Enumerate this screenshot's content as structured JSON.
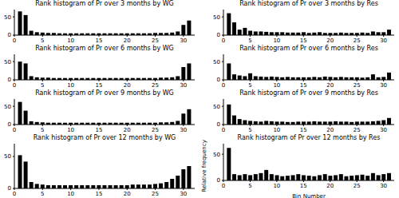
{
  "chart_data": [
    {
      "type": "histogram",
      "title": "Rank histogram of Pr over 3 months by WG",
      "bins": [
        0.5,
        1.5,
        2.5,
        3.5,
        4.5,
        5.5,
        6.5,
        7.5,
        8.5,
        9.5,
        10.5,
        11.5,
        12.5,
        13.5,
        14.5,
        15.5,
        16.5,
        17.5,
        18.5,
        19.5,
        20.5,
        21.5,
        22.5,
        23.5,
        24.5,
        25.5,
        26.5,
        27.5,
        28.5,
        29.5,
        30.5,
        31.5
      ],
      "values": [
        65,
        55,
        12,
        8,
        7,
        6,
        6,
        5,
        5,
        5,
        5,
        5,
        5,
        5,
        5,
        5,
        5,
        5,
        5,
        5,
        5,
        5,
        5,
        5,
        6,
        6,
        6,
        7,
        10,
        28,
        40
      ],
      "xlim": [
        0,
        32
      ],
      "xticks": [
        0,
        5,
        10,
        15,
        20,
        25,
        30
      ],
      "ylim": [
        0,
        70
      ],
      "yticks": [
        0,
        50
      ],
      "color": "#000000",
      "grid": false
    },
    {
      "type": "histogram",
      "title": "Rank histogram of Pr over 3 months by Res",
      "bins": [
        0.5,
        1.5,
        2.5,
        3.5,
        4.5,
        5.5,
        6.5,
        7.5,
        8.5,
        9.5,
        10.5,
        11.5,
        12.5,
        13.5,
        14.5,
        15.5,
        16.5,
        17.5,
        18.5,
        19.5,
        20.5,
        21.5,
        22.5,
        23.5,
        24.5,
        25.5,
        26.5,
        27.5,
        28.5,
        29.5,
        30.5,
        31.5
      ],
      "values": [
        60,
        35,
        15,
        20,
        12,
        10,
        10,
        9,
        8,
        8,
        8,
        7,
        7,
        7,
        8,
        6,
        7,
        8,
        6,
        6,
        6,
        7,
        6,
        6,
        6,
        7,
        6,
        10,
        8,
        8,
        15
      ],
      "xlim": [
        0,
        32
      ],
      "xticks": [
        0,
        5,
        10,
        15,
        20,
        25,
        30
      ],
      "ylim": [
        0,
        70
      ],
      "yticks": [
        0,
        50
      ],
      "color": "#000000",
      "grid": false
    },
    {
      "type": "histogram",
      "title": "Rank histogram of Pr over 6 months by WG",
      "bins": [
        0.5,
        1.5,
        2.5,
        3.5,
        4.5,
        5.5,
        6.5,
        7.5,
        8.5,
        9.5,
        10.5,
        11.5,
        12.5,
        13.5,
        14.5,
        15.5,
        16.5,
        17.5,
        18.5,
        19.5,
        20.5,
        21.5,
        22.5,
        23.5,
        24.5,
        25.5,
        26.5,
        27.5,
        28.5,
        29.5,
        30.5,
        31.5
      ],
      "values": [
        50,
        45,
        10,
        7,
        6,
        6,
        5,
        5,
        5,
        5,
        5,
        5,
        5,
        5,
        5,
        5,
        5,
        5,
        5,
        5,
        5,
        5,
        5,
        5,
        5,
        6,
        6,
        7,
        10,
        35,
        45
      ],
      "xlim": [
        0,
        32
      ],
      "xticks": [
        0,
        5,
        10,
        15,
        20,
        25,
        30
      ],
      "ylim": [
        0,
        70
      ],
      "yticks": [
        0,
        50
      ],
      "color": "#000000",
      "grid": false
    },
    {
      "type": "histogram",
      "title": "Rank histogram of Pr over 6 months by Res",
      "bins": [
        0.5,
        1.5,
        2.5,
        3.5,
        4.5,
        5.5,
        6.5,
        7.5,
        8.5,
        9.5,
        10.5,
        11.5,
        12.5,
        13.5,
        14.5,
        15.5,
        16.5,
        17.5,
        18.5,
        19.5,
        20.5,
        21.5,
        22.5,
        23.5,
        24.5,
        25.5,
        26.5,
        27.5,
        28.5,
        29.5,
        30.5,
        31.5
      ],
      "values": [
        45,
        15,
        12,
        10,
        18,
        10,
        9,
        8,
        9,
        8,
        7,
        8,
        7,
        7,
        7,
        7,
        8,
        7,
        9,
        8,
        7,
        8,
        7,
        7,
        7,
        6,
        7,
        15,
        7,
        8,
        20
      ],
      "xlim": [
        0,
        32
      ],
      "xticks": [
        0,
        5,
        10,
        15,
        20,
        25,
        30
      ],
      "ylim": [
        0,
        70
      ],
      "yticks": [
        0,
        50
      ],
      "color": "#000000",
      "grid": false
    },
    {
      "type": "histogram",
      "title": "Rank histogram of Pr over 9 months by WG",
      "bins": [
        0.5,
        1.5,
        2.5,
        3.5,
        4.5,
        5.5,
        6.5,
        7.5,
        8.5,
        9.5,
        10.5,
        11.5,
        12.5,
        13.5,
        14.5,
        15.5,
        16.5,
        17.5,
        18.5,
        19.5,
        20.5,
        21.5,
        22.5,
        23.5,
        24.5,
        25.5,
        26.5,
        27.5,
        28.5,
        29.5,
        30.5,
        31.5
      ],
      "values": [
        62,
        38,
        9,
        7,
        6,
        5,
        5,
        5,
        5,
        5,
        5,
        5,
        5,
        5,
        5,
        5,
        5,
        5,
        5,
        5,
        5,
        5,
        5,
        5,
        5,
        6,
        6,
        7,
        10,
        30,
        42
      ],
      "xlim": [
        0,
        32
      ],
      "xticks": [
        0,
        5,
        10,
        15,
        20,
        25,
        30
      ],
      "ylim": [
        0,
        70
      ],
      "yticks": [
        0,
        50
      ],
      "color": "#000000",
      "grid": false
    },
    {
      "type": "histogram",
      "title": "Rank histogram of Pr over 9 months by Res",
      "bins": [
        0.5,
        1.5,
        2.5,
        3.5,
        4.5,
        5.5,
        6.5,
        7.5,
        8.5,
        9.5,
        10.5,
        11.5,
        12.5,
        13.5,
        14.5,
        15.5,
        16.5,
        17.5,
        18.5,
        19.5,
        20.5,
        21.5,
        22.5,
        23.5,
        24.5,
        25.5,
        26.5,
        27.5,
        28.5,
        29.5,
        30.5,
        31.5
      ],
      "values": [
        55,
        25,
        15,
        12,
        10,
        9,
        8,
        10,
        9,
        8,
        8,
        7,
        7,
        8,
        8,
        8,
        9,
        8,
        8,
        8,
        9,
        8,
        8,
        7,
        8,
        8,
        8,
        9,
        10,
        12,
        18
      ],
      "xlim": [
        0,
        32
      ],
      "xticks": [
        0,
        5,
        10,
        15,
        20,
        25,
        30
      ],
      "ylim": [
        0,
        70
      ],
      "yticks": [
        0,
        50
      ],
      "color": "#000000",
      "grid": false
    },
    {
      "type": "histogram",
      "title": "Rank histogram of Pr over 12 months by WG",
      "bins": [
        0.5,
        1.5,
        2.5,
        3.5,
        4.5,
        5.5,
        6.5,
        7.5,
        8.5,
        9.5,
        10.5,
        11.5,
        12.5,
        13.5,
        14.5,
        15.5,
        16.5,
        17.5,
        18.5,
        19.5,
        20.5,
        21.5,
        22.5,
        23.5,
        24.5,
        25.5,
        26.5,
        27.5,
        28.5,
        29.5,
        30.5,
        31.5
      ],
      "values": [
        52,
        42,
        10,
        7,
        6,
        5,
        5,
        5,
        5,
        5,
        5,
        5,
        5,
        5,
        5,
        5,
        5,
        5,
        5,
        5,
        6,
        6,
        6,
        6,
        7,
        8,
        10,
        15,
        20,
        30,
        35
      ],
      "xlim": [
        0,
        32
      ],
      "xticks": [
        0,
        5,
        10,
        15,
        20,
        25,
        30
      ],
      "ylim": [
        0,
        70
      ],
      "yticks": [
        0,
        50
      ],
      "color": "#000000",
      "grid": false
    },
    {
      "type": "histogram",
      "title": "Rank histogram of Pr over 12 months by Res",
      "bins": [
        0.5,
        1.5,
        2.5,
        3.5,
        4.5,
        5.5,
        6.5,
        7.5,
        8.5,
        9.5,
        10.5,
        11.5,
        12.5,
        13.5,
        14.5,
        15.5,
        16.5,
        17.5,
        18.5,
        19.5,
        20.5,
        21.5,
        22.5,
        23.5,
        24.5,
        25.5,
        26.5,
        27.5,
        28.5,
        29.5,
        30.5,
        31.5
      ],
      "values": [
        62,
        12,
        10,
        12,
        10,
        12,
        14,
        20,
        12,
        10,
        8,
        9,
        10,
        12,
        10,
        9,
        8,
        10,
        12,
        9,
        10,
        12,
        8,
        9,
        10,
        11,
        9,
        14,
        10,
        12,
        14
      ],
      "xlim": [
        0,
        32
      ],
      "xticks": [
        0,
        5,
        10,
        15,
        20,
        25,
        30
      ],
      "ylim": [
        0,
        70
      ],
      "yticks": [
        0,
        50
      ],
      "color": "#000000",
      "grid": false,
      "x_label": "Bin Number",
      "y_label": "Relative frequency"
    }
  ]
}
